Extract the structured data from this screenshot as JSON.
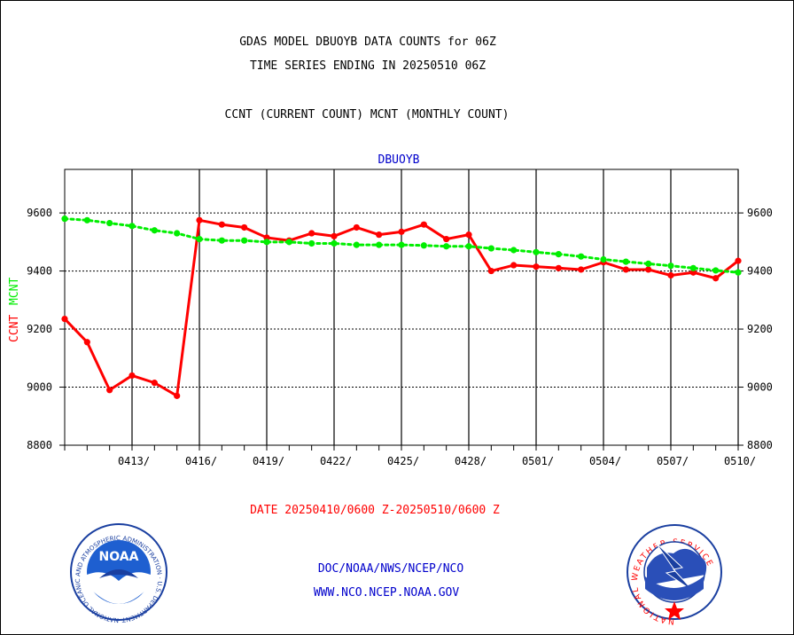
{
  "header": {
    "title_line1": "GDAS MODEL DBUOYB DATA COUNTS for 06Z",
    "title_line2": "TIME SERIES ENDING IN 20250510 06Z",
    "subtitle": "CCNT (CURRENT COUNT) MCNT (MONTHLY COUNT)"
  },
  "footer": {
    "date_range": "DATE 20250410/0600 Z-20250510/0600 Z",
    "org_path": "DOC/NOAA/NWS/NCEP/NCO",
    "website": "WWW.NCO.NCEP.NOAA.GOV",
    "noaa_logo_text": "NOAA",
    "noaa_ring_text": "NATIONAL OCEANIC AND ATMOSPHERIC ADMINISTRATION · U.S. DEPARTMENT OF COMMERCE",
    "nws_ring_text": "NATIONAL WEATHER SERVICE"
  },
  "colors": {
    "ccnt": "#ff0000",
    "mcnt": "#00ee00",
    "title_text": "#000000",
    "panel_label": "#0000cc",
    "grid": "#000000"
  },
  "chart_data": {
    "type": "line",
    "title": "DBUOYB",
    "ylabel_left": [
      "CCNT",
      "MCNT"
    ],
    "ylim": [
      8800,
      9750
    ],
    "yticks": [
      8800,
      9000,
      9200,
      9400,
      9600
    ],
    "grid": true,
    "x_tick_labels": [
      "0413/",
      "0416/",
      "0419/",
      "0422/",
      "0425/",
      "0428/",
      "0501/",
      "0504/",
      "0507/",
      "0510/"
    ],
    "x": [
      "0410",
      "0411",
      "0412",
      "0413",
      "0414",
      "0415",
      "0416",
      "0417",
      "0418",
      "0419",
      "0420",
      "0421",
      "0422",
      "0423",
      "0424",
      "0425",
      "0426",
      "0427",
      "0428",
      "0429",
      "0430",
      "0501",
      "0502",
      "0503",
      "0504",
      "0505",
      "0506",
      "0507",
      "0508",
      "0509",
      "0510"
    ],
    "series": [
      {
        "name": "CCNT",
        "values": [
          9235,
          9155,
          8990,
          9040,
          9015,
          8970,
          9575,
          9560,
          9550,
          9515,
          9505,
          9530,
          9520,
          9550,
          9525,
          9535,
          9560,
          9510,
          9525,
          9400,
          9420,
          9415,
          9410,
          9405,
          9430,
          9405,
          9405,
          9385,
          9395,
          9375,
          9435
        ]
      },
      {
        "name": "MCNT",
        "values": [
          9580,
          9575,
          9565,
          9555,
          9540,
          9530,
          9510,
          9505,
          9505,
          9500,
          9500,
          9495,
          9495,
          9490,
          9490,
          9490,
          9488,
          9485,
          9485,
          9478,
          9472,
          9465,
          9458,
          9450,
          9440,
          9432,
          9425,
          9418,
          9410,
          9402,
          9395
        ]
      }
    ]
  }
}
